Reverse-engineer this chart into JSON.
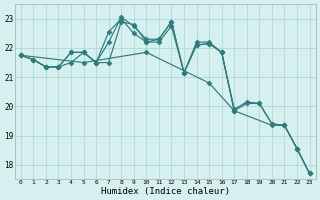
{
  "xlabel": "Humidex (Indice chaleur)",
  "bg_color": "#d6f0f0",
  "grid_color": "#b0d8d8",
  "line_color": "#2d7d7d",
  "xlim": [
    -0.5,
    23.5
  ],
  "ylim": [
    17.5,
    23.5
  ],
  "yticks": [
    18,
    19,
    20,
    21,
    22,
    23
  ],
  "xticks": [
    0,
    1,
    2,
    3,
    4,
    5,
    6,
    7,
    8,
    9,
    10,
    11,
    12,
    13,
    14,
    15,
    16,
    17,
    18,
    19,
    20,
    21,
    22,
    23
  ],
  "line1_x": [
    0,
    1,
    2,
    3,
    4,
    5,
    6,
    7,
    8,
    9,
    10,
    11,
    12,
    13,
    14,
    15,
    16,
    17,
    18,
    19,
    20,
    21,
    22,
    23
  ],
  "line1_y": [
    21.75,
    21.6,
    21.35,
    21.35,
    21.85,
    21.85,
    21.5,
    22.2,
    23.05,
    22.75,
    22.3,
    22.3,
    22.9,
    21.15,
    22.2,
    22.2,
    21.85,
    19.9,
    20.15,
    20.1,
    19.4,
    19.35,
    18.55,
    17.7
  ],
  "line2_x": [
    0,
    1,
    2,
    3,
    4,
    5,
    6,
    7,
    8,
    9,
    10,
    11,
    12,
    13,
    14,
    15,
    16,
    17,
    18,
    19,
    20,
    21,
    22,
    23
  ],
  "line2_y": [
    21.75,
    21.6,
    21.35,
    21.35,
    21.85,
    21.85,
    21.5,
    21.5,
    22.9,
    22.8,
    22.2,
    22.3,
    22.9,
    21.15,
    22.1,
    22.15,
    21.85,
    19.85,
    20.1,
    20.1,
    19.4,
    19.35,
    18.55,
    17.7
  ],
  "line3_x": [
    0,
    1,
    2,
    3,
    4,
    5,
    6,
    7,
    8,
    9,
    10,
    11,
    12,
    13,
    14,
    15,
    16,
    17
  ],
  "line3_y": [
    21.75,
    21.6,
    21.35,
    21.35,
    21.5,
    21.85,
    21.5,
    22.55,
    23.0,
    22.5,
    22.2,
    22.2,
    22.75,
    21.15,
    22.1,
    22.15,
    21.85,
    19.85
  ],
  "line4_x": [
    0,
    5,
    10,
    15,
    17,
    20,
    21,
    22,
    23
  ],
  "line4_y": [
    21.75,
    21.5,
    21.85,
    20.8,
    19.85,
    19.35,
    19.35,
    18.55,
    17.7
  ]
}
